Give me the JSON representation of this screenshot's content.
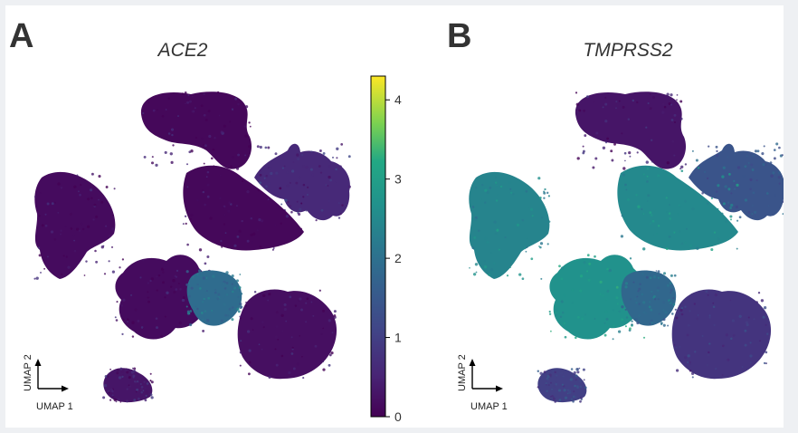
{
  "chart_data": [
    {
      "type": "scatter",
      "panel": "A",
      "title": "ACE2",
      "xlabel": "UMAP 1",
      "ylabel": "UMAP 2",
      "grid": false,
      "clusters": [
        {
          "id": "top-blob",
          "value": 0.1
        },
        {
          "id": "upper-right-star",
          "value": 0.6
        },
        {
          "id": "left-wedge",
          "value": 0.15
        },
        {
          "id": "center-leaf",
          "value": 0.1
        },
        {
          "id": "middle-lumps",
          "value": 0.15
        },
        {
          "id": "bright-blob",
          "value": 1.9
        },
        {
          "id": "lower-big-blob",
          "value": 0.2
        },
        {
          "id": "bottom-blob",
          "value": 0.3
        }
      ]
    },
    {
      "type": "scatter",
      "panel": "B",
      "title": "TMPRSS2",
      "xlabel": "UMAP 1",
      "ylabel": "UMAP 2",
      "grid": false,
      "clusters": [
        {
          "id": "top-blob",
          "value": 0.3
        },
        {
          "id": "upper-right-star",
          "value": 1.4
        },
        {
          "id": "left-wedge",
          "value": 2.4
        },
        {
          "id": "center-leaf",
          "value": 2.5
        },
        {
          "id": "middle-lumps",
          "value": 2.7
        },
        {
          "id": "bright-blob",
          "value": 1.8
        },
        {
          "id": "lower-big-blob",
          "value": 0.8
        },
        {
          "id": "bottom-blob",
          "value": 1.0
        }
      ]
    }
  ],
  "colorbar": {
    "colormap": "viridis",
    "ticks": [
      "0",
      "1",
      "2",
      "3",
      "4"
    ],
    "range": [
      0,
      4.3
    ]
  },
  "colors": {
    "low": "#440154",
    "high": "#fde725",
    "frame": "#000000"
  }
}
